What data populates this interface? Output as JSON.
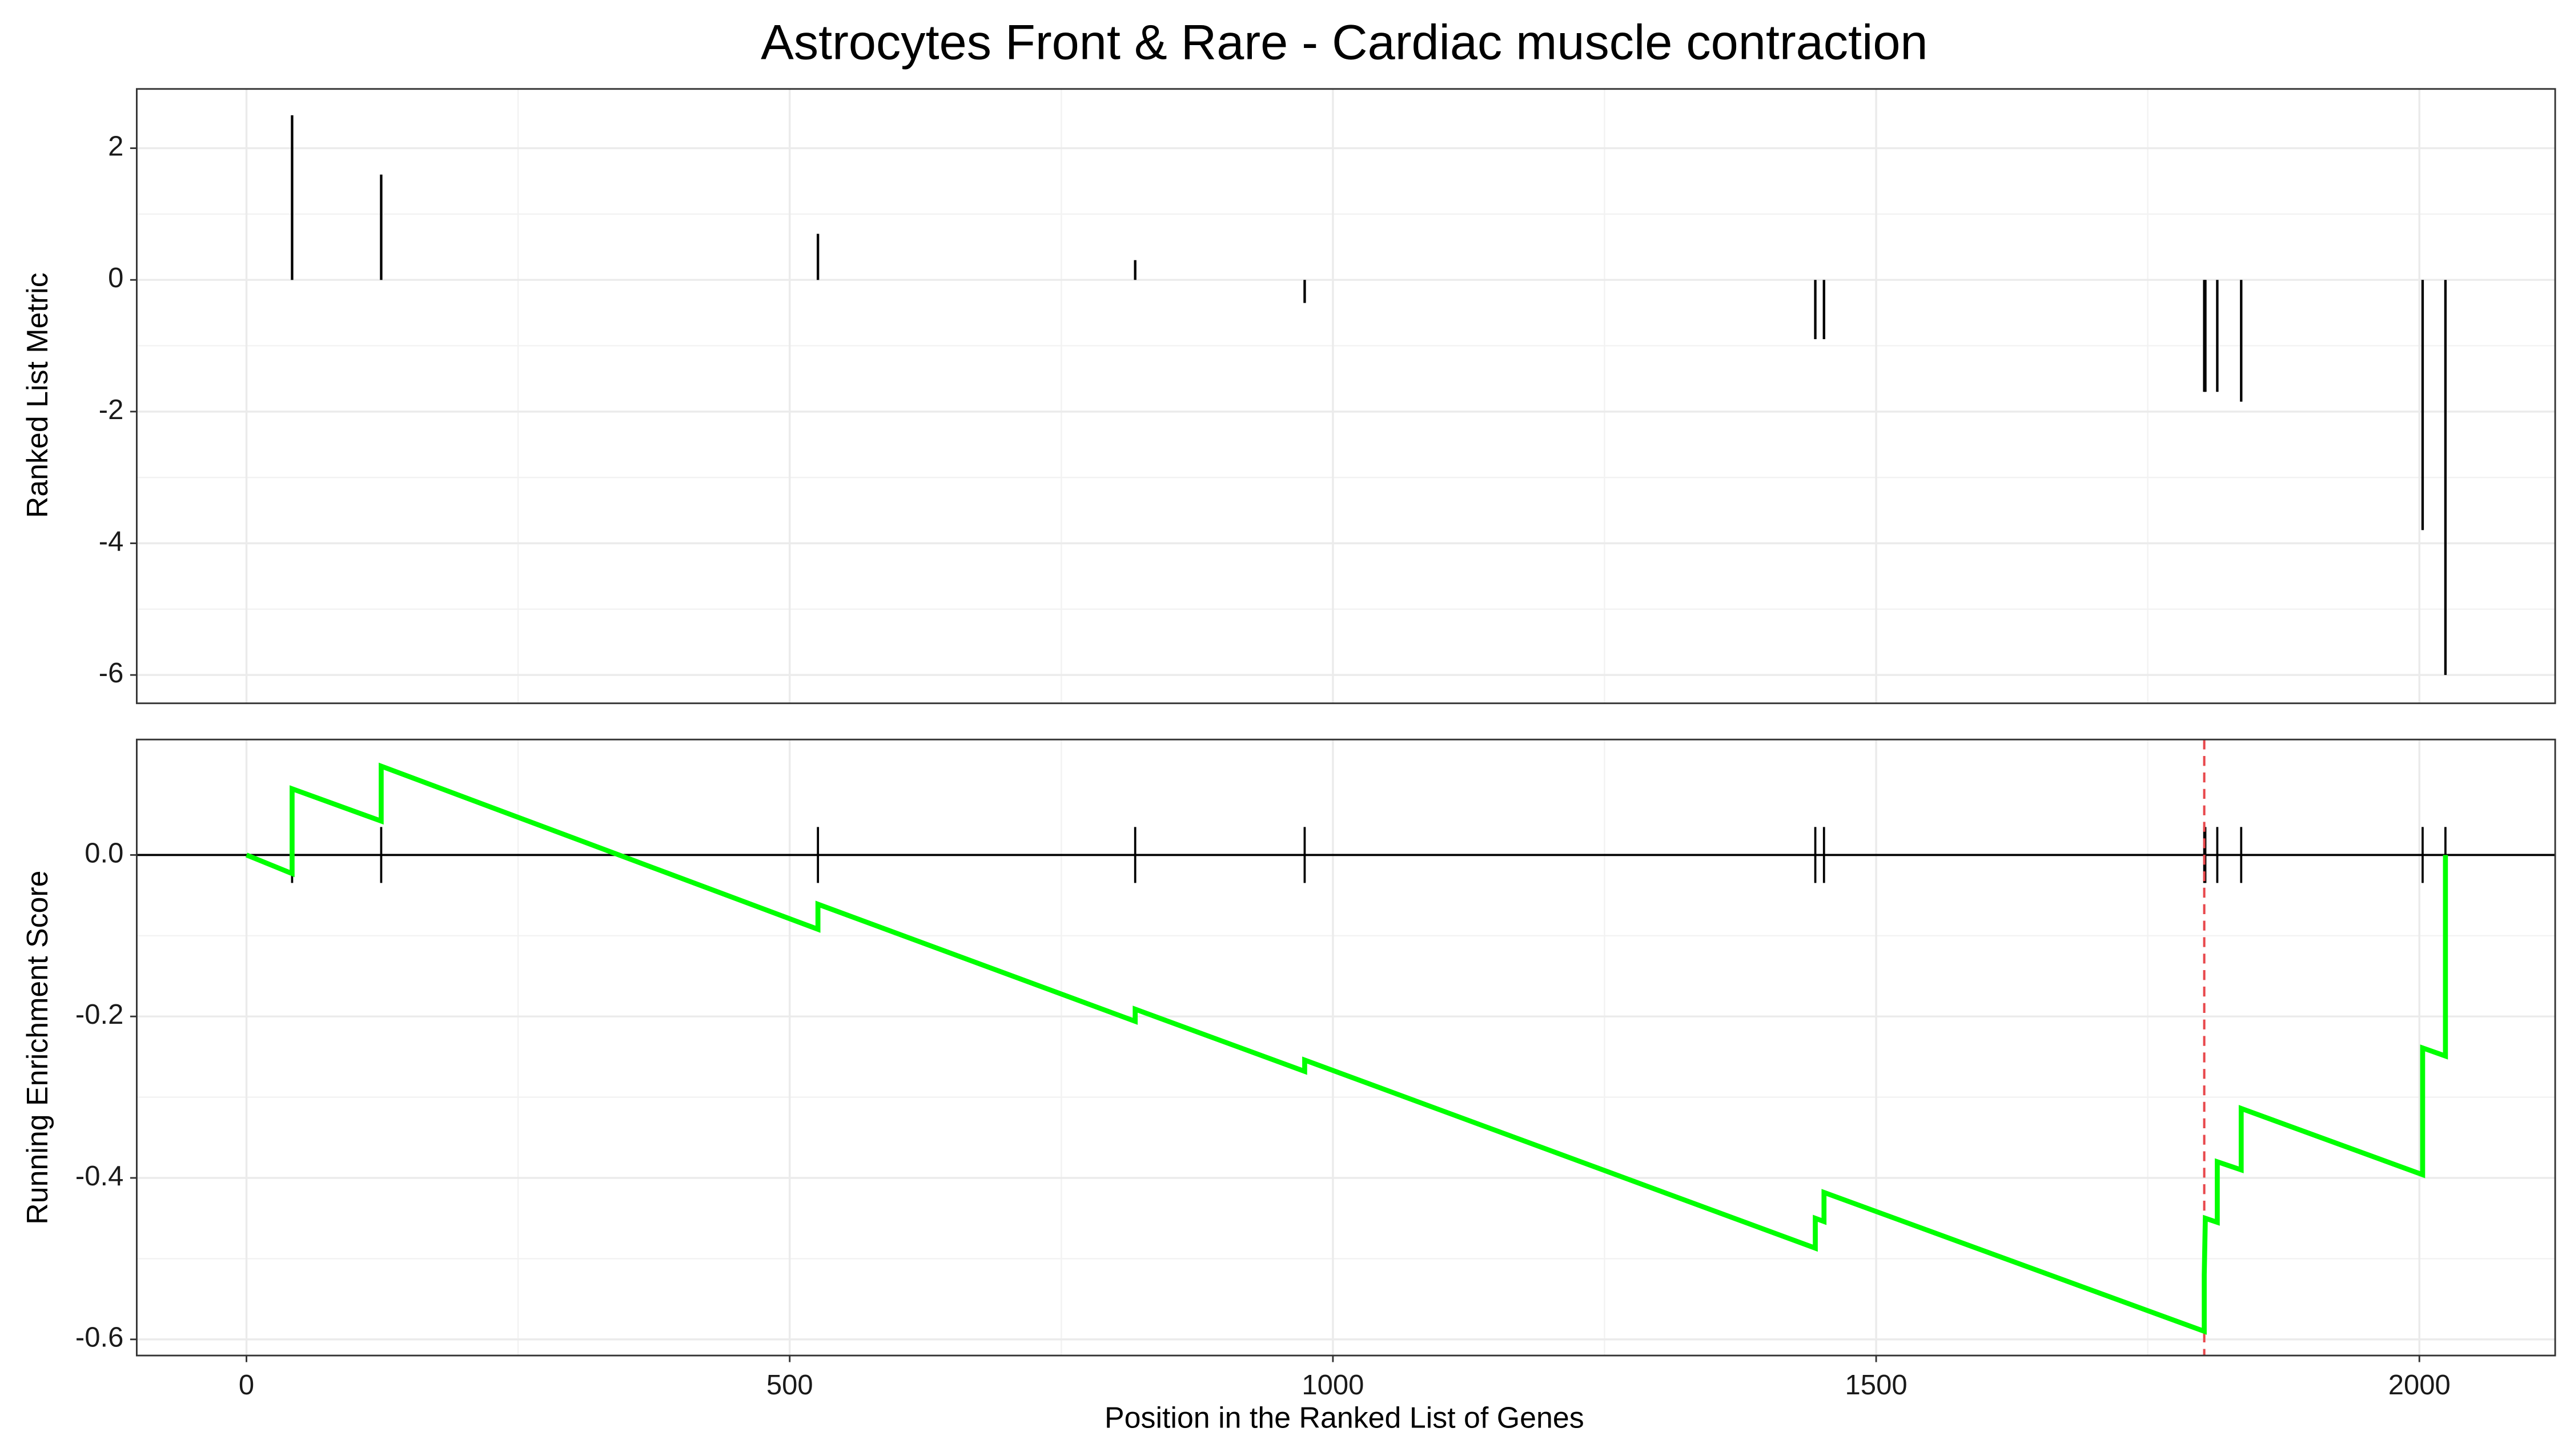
{
  "chart_data": [
    {
      "type": "bar",
      "title": "Astrocytes Front & Rare - Cardiac muscle contraction",
      "ylabel": "Ranked List Metric",
      "x": [
        42,
        124,
        526,
        818,
        974,
        1444,
        1452,
        1802,
        1803,
        1814,
        1836,
        2003,
        2024
      ],
      "values": [
        2.5,
        1.6,
        0.7,
        0.3,
        -0.35,
        -0.9,
        -0.9,
        -1.7,
        -1.7,
        -1.7,
        -1.85,
        -3.8,
        -6.0
      ],
      "color": "#000000",
      "xlim": [
        -101,
        2125
      ],
      "ylim": [
        -6.43,
        2.9
      ],
      "yticks": [
        -6,
        -4,
        -2,
        0,
        2
      ],
      "grid": true
    },
    {
      "type": "line",
      "ylabel": "Running Enrichment Score",
      "xlabel": "Position in the Ranked List of Genes",
      "x": [
        0,
        42,
        42,
        124,
        124,
        526,
        526,
        818,
        818,
        974,
        974,
        1444,
        1444,
        1452,
        1452,
        1802,
        1802,
        1803,
        1814,
        1814,
        1836,
        1836,
        2003,
        2003,
        2024,
        2024
      ],
      "values": [
        0,
        -0.023,
        0.082,
        0.042,
        0.11,
        -0.092,
        -0.061,
        -0.206,
        -0.191,
        -0.268,
        -0.254,
        -0.487,
        -0.45,
        -0.454,
        -0.418,
        -0.59,
        -0.52,
        -0.45,
        -0.455,
        -0.38,
        -0.39,
        -0.314,
        -0.396,
        -0.239,
        -0.249,
        0
      ],
      "color": "#00ff00",
      "peak_x": 1802,
      "peak_color": "#e8474b",
      "xlim": [
        -101,
        2125
      ],
      "xticks": [
        0,
        500,
        1000,
        1500,
        2000
      ],
      "ylim": [
        -0.62,
        0.143
      ],
      "yticks": [
        -0.6,
        -0.4,
        -0.2,
        {
          "value": 0,
          "label": "0.0"
        }
      ],
      "grid": true
    }
  ]
}
